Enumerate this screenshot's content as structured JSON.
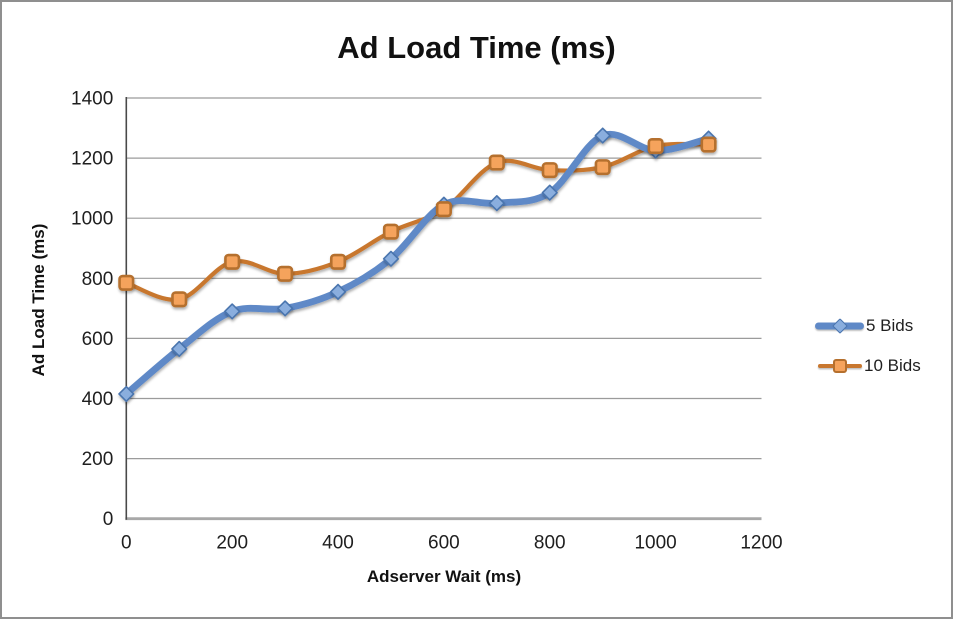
{
  "window": {
    "background": "#ffffff",
    "border_color": "#8f8f8f"
  },
  "colors": {
    "gridline": "#9b9b9b",
    "x_axis_line": "#a8a8a8",
    "y_axis_line": "#4a4a4a",
    "text": "#1f1f1f"
  },
  "chart_data": {
    "type": "line",
    "title": "Ad Load Time (ms)",
    "xlabel": "Adserver Wait (ms)",
    "ylabel": "Ad Load Time (ms)",
    "x": [
      0,
      100,
      200,
      300,
      400,
      500,
      600,
      700,
      800,
      900,
      1000,
      1100
    ],
    "series": [
      {
        "name": "5 Bids",
        "marker": "diamond",
        "line_color": "#5f89c7",
        "marker_fill": "#8aaede",
        "marker_stroke": "#4a74ae",
        "line_width": 6.8,
        "values": [
          415,
          565,
          690,
          700,
          755,
          865,
          1045,
          1050,
          1085,
          1275,
          1225,
          1265
        ]
      },
      {
        "name": "10 Bids",
        "marker": "square",
        "line_color": "#c8772f",
        "marker_fill": "#f5a35c",
        "marker_stroke": "#b5702e",
        "line_width": 4.2,
        "values": [
          785,
          730,
          855,
          815,
          855,
          955,
          1030,
          1185,
          1160,
          1170,
          1240,
          1245
        ]
      }
    ],
    "xlim": [
      0,
      1200
    ],
    "ylim": [
      0,
      1400
    ],
    "x_ticks": [
      0,
      200,
      400,
      600,
      800,
      1000,
      1200
    ],
    "y_ticks": [
      0,
      200,
      400,
      600,
      800,
      1000,
      1200,
      1400
    ],
    "grid": "horizontal",
    "smoothed": true,
    "legend_position": "right"
  }
}
